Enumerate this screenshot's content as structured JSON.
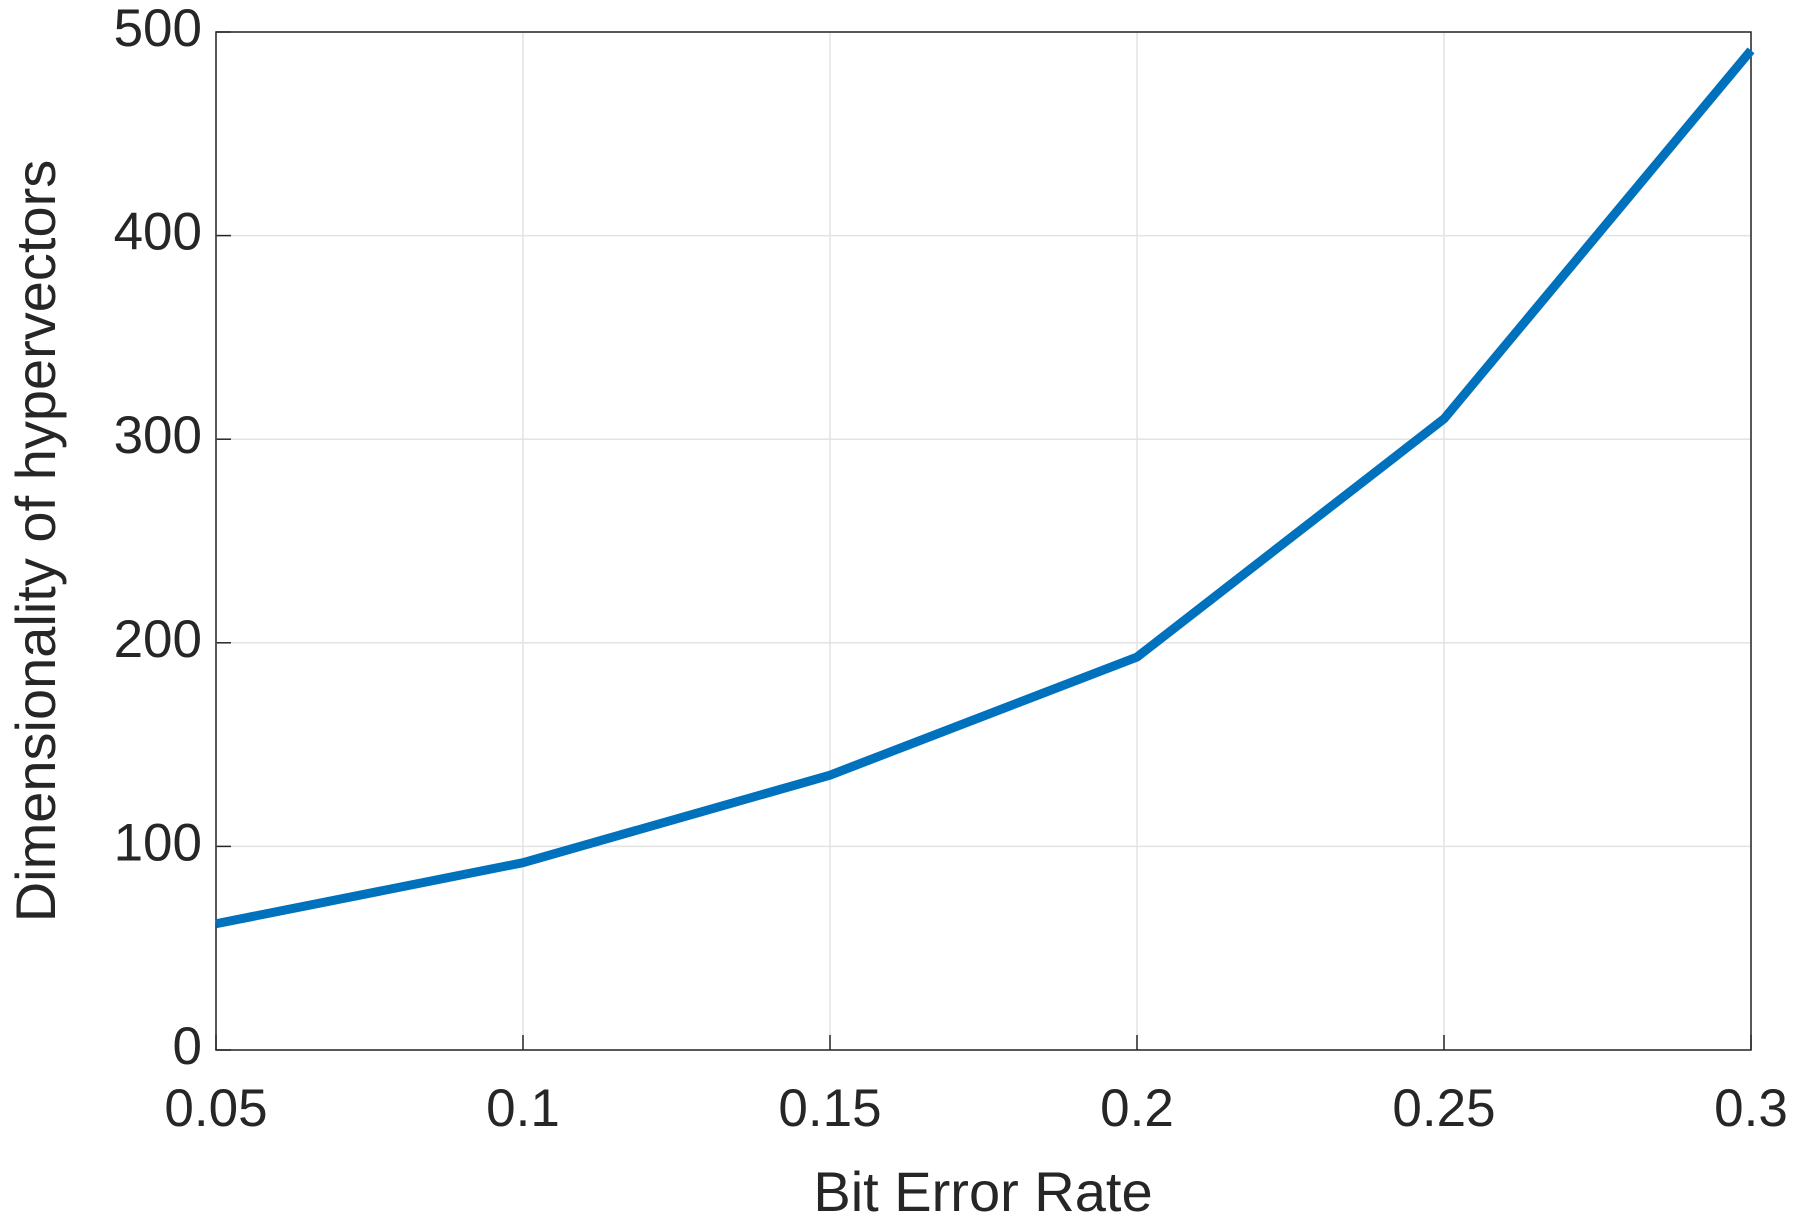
{
  "chart_data": {
    "type": "line",
    "xlabel": "Bit Error Rate",
    "ylabel": "Dimensionality of hypervectors",
    "x": [
      0.05,
      0.1,
      0.15,
      0.2,
      0.25,
      0.3
    ],
    "series": [
      {
        "name": "Dimensionality",
        "color": "#0072bd",
        "values": [
          62,
          92,
          135,
          193,
          310,
          491
        ]
      }
    ],
    "xlim": [
      0.05,
      0.3
    ],
    "xticks": [
      0.05,
      0.1,
      0.15,
      0.2,
      0.25,
      0.3
    ],
    "ylim": [
      0,
      500
    ],
    "yticks": [
      0,
      100,
      200,
      300,
      400,
      500
    ],
    "grid": true
  }
}
